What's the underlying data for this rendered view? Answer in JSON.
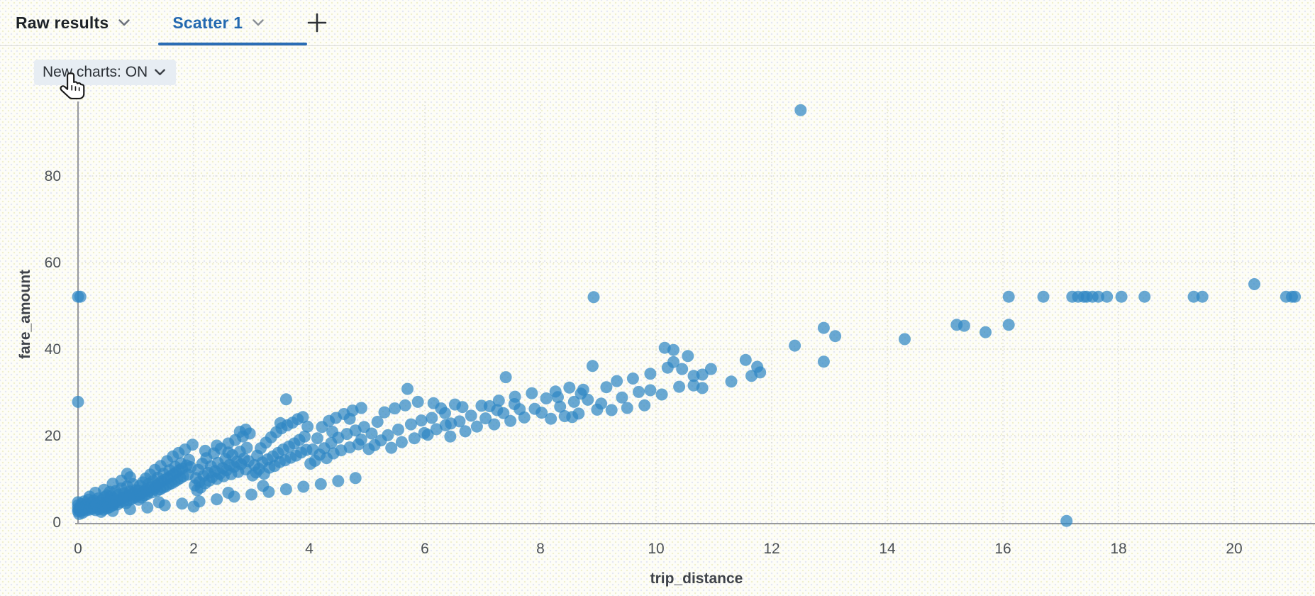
{
  "tab_bar": {
    "tabs": [
      {
        "label": "Raw results",
        "active": false
      },
      {
        "label": "Scatter 1",
        "active": true
      }
    ],
    "add_tab": "+"
  },
  "controls": {
    "new_charts_toggle": "New charts: ON"
  },
  "colors": {
    "accent_blue": "#2368b0",
    "tab_underline": "#2a6db5",
    "point_blue": "#2f86c4",
    "axis_gray": "#97999e",
    "grid_gray": "#d9d9cc",
    "tick_text": "#4b5055",
    "axis_title_text": "#3f434a",
    "pill_background": "#e7edf3",
    "page_background": "#fdfdf7"
  },
  "chart_data": {
    "type": "scatter",
    "xlabel": "trip_distance",
    "ylabel": "fare_amount",
    "x_ticks": [
      0,
      2,
      4,
      6,
      8,
      10,
      12,
      14,
      16,
      18,
      20
    ],
    "y_ticks": [
      0,
      20,
      40,
      60,
      80
    ],
    "xlim": [
      0,
      21.4
    ],
    "ylim": [
      0,
      97
    ],
    "grid": true,
    "legend": false,
    "point_radius_px": 8.5,
    "points": [
      [
        0,
        2.5
      ],
      [
        0,
        3.1
      ],
      [
        0,
        3.9
      ],
      [
        0,
        4.6
      ],
      [
        0.02,
        1.9
      ],
      [
        0.02,
        2.8
      ],
      [
        0.04,
        3.5
      ],
      [
        0.05,
        2.6
      ],
      [
        0.06,
        4.2
      ],
      [
        0.08,
        2.2
      ],
      [
        0.08,
        3.2
      ],
      [
        0.1,
        2.9
      ],
      [
        0.1,
        4.8
      ],
      [
        0.12,
        3.6
      ],
      [
        0.14,
        2.7
      ],
      [
        0.15,
        4.1
      ],
      [
        0.17,
        3.3
      ],
      [
        0.18,
        5.2
      ],
      [
        0.2,
        2.9
      ],
      [
        0.2,
        5.9
      ],
      [
        0.22,
        3.8
      ],
      [
        0.24,
        4.5
      ],
      [
        0.25,
        3.1
      ],
      [
        0.27,
        5
      ],
      [
        0.28,
        3.5
      ],
      [
        0.3,
        2.8
      ],
      [
        0.3,
        6.8
      ],
      [
        0.31,
        4.2
      ],
      [
        0.33,
        3.7
      ],
      [
        0.35,
        5.5
      ],
      [
        0.36,
        3
      ],
      [
        0.38,
        4.6
      ],
      [
        0.4,
        2.4
      ],
      [
        0.4,
        3.4
      ],
      [
        0.41,
        5.1
      ],
      [
        0.43,
        4
      ],
      [
        0.44,
        2.9
      ],
      [
        0.45,
        7.5
      ],
      [
        0.46,
        5.8
      ],
      [
        0.47,
        3.6
      ],
      [
        0.48,
        4.4
      ],
      [
        0.5,
        3.2
      ],
      [
        0.5,
        6.2
      ],
      [
        0.52,
        4.1
      ],
      [
        0.54,
        5.3
      ],
      [
        0.55,
        3.5
      ],
      [
        0.55,
        7
      ],
      [
        0.57,
        6.1
      ],
      [
        0.58,
        4.7
      ],
      [
        0.6,
        2.6
      ],
      [
        0.6,
        3.9
      ],
      [
        0.6,
        8.9
      ],
      [
        0.62,
        5.6
      ],
      [
        0.63,
        4.3
      ],
      [
        0.65,
        7.2
      ],
      [
        0.66,
        5
      ],
      [
        0.68,
        4.1
      ],
      [
        0.7,
        6.4
      ],
      [
        0.71,
        5.2
      ],
      [
        0.73,
        4.6
      ],
      [
        0.75,
        7.8
      ],
      [
        0.75,
        9.6
      ],
      [
        0.76,
        5.5
      ],
      [
        0.78,
        4.9
      ],
      [
        0.8,
        6.7
      ],
      [
        0.81,
        5.8
      ],
      [
        0.83,
        4.4
      ],
      [
        0.85,
        8.3
      ],
      [
        0.85,
        11.2
      ],
      [
        0.86,
        6
      ],
      [
        0.88,
        5.1
      ],
      [
        0.9,
        3
      ],
      [
        0.9,
        7.1
      ],
      [
        0.9,
        10.4
      ],
      [
        0.91,
        6.3
      ],
      [
        0.93,
        5.4
      ],
      [
        0.95,
        8.8
      ],
      [
        0.96,
        6.6
      ],
      [
        0.98,
        5.7
      ],
      [
        1,
        7.4
      ],
      [
        1.02,
        6.1
      ],
      [
        1.04,
        7.3
      ],
      [
        1.05,
        5.2
      ],
      [
        1.07,
        8.4
      ],
      [
        1.08,
        6.6
      ],
      [
        1.1,
        5.7
      ],
      [
        1.12,
        9.2
      ],
      [
        1.13,
        7
      ],
      [
        1.15,
        6.2
      ],
      [
        1.17,
        10.1
      ],
      [
        1.18,
        7.6
      ],
      [
        1.2,
        3.4
      ],
      [
        1.2,
        6.5
      ],
      [
        1.22,
        8.8
      ],
      [
        1.23,
        7.2
      ],
      [
        1.25,
        11
      ],
      [
        1.27,
        8.1
      ],
      [
        1.28,
        6.9
      ],
      [
        1.3,
        9.5
      ],
      [
        1.32,
        7.7
      ],
      [
        1.33,
        12.1
      ],
      [
        1.35,
        8.5
      ],
      [
        1.37,
        7.3
      ],
      [
        1.38,
        10.3
      ],
      [
        1.4,
        4.6
      ],
      [
        1.4,
        8.9
      ],
      [
        1.42,
        7.6
      ],
      [
        1.43,
        13
      ],
      [
        1.45,
        9.4
      ],
      [
        1.47,
        8
      ],
      [
        1.48,
        11.2
      ],
      [
        1.5,
        3.9
      ],
      [
        1.5,
        9.8
      ],
      [
        1.52,
        8.3
      ],
      [
        1.54,
        14.1
      ],
      [
        1.55,
        10.2
      ],
      [
        1.57,
        8.7
      ],
      [
        1.58,
        12
      ],
      [
        1.6,
        10.6
      ],
      [
        1.62,
        9
      ],
      [
        1.64,
        15.2
      ],
      [
        1.65,
        11.1
      ],
      [
        1.67,
        9.4
      ],
      [
        1.68,
        12.8
      ],
      [
        1.7,
        11.5
      ],
      [
        1.72,
        9.8
      ],
      [
        1.74,
        16
      ],
      [
        1.75,
        12
      ],
      [
        1.77,
        10.2
      ],
      [
        1.78,
        13.6
      ],
      [
        1.8,
        4.3
      ],
      [
        1.8,
        12.4
      ],
      [
        1.82,
        10.6
      ],
      [
        1.85,
        16.8
      ],
      [
        1.88,
        13.1
      ],
      [
        1.9,
        11
      ],
      [
        1.92,
        14.4
      ],
      [
        1.95,
        12.7
      ],
      [
        1.98,
        17.9
      ],
      [
        2,
        3.6
      ],
      [
        2.02,
        8.5
      ],
      [
        2.04,
        10.2
      ],
      [
        2.06,
        7.4
      ],
      [
        2.08,
        12.1
      ],
      [
        2.1,
        4.8
      ],
      [
        2.1,
        9.3
      ],
      [
        2.12,
        8
      ],
      [
        2.15,
        13.5
      ],
      [
        2.17,
        10.7
      ],
      [
        2.2,
        9
      ],
      [
        2.2,
        16.5
      ],
      [
        2.22,
        14.8
      ],
      [
        2.25,
        11.4
      ],
      [
        2.27,
        9.6
      ],
      [
        2.3,
        12.9
      ],
      [
        2.32,
        10.4
      ],
      [
        2.35,
        15.9
      ],
      [
        2.37,
        11.8
      ],
      [
        2.4,
        5.3
      ],
      [
        2.4,
        10
      ],
      [
        2.4,
        17.7
      ],
      [
        2.42,
        13.7
      ],
      [
        2.45,
        11.2
      ],
      [
        2.47,
        17
      ],
      [
        2.5,
        12.5
      ],
      [
        2.52,
        10.6
      ],
      [
        2.55,
        14.6
      ],
      [
        2.57,
        12
      ],
      [
        2.6,
        6.8
      ],
      [
        2.6,
        16.1
      ],
      [
        2.6,
        18.2
      ],
      [
        2.62,
        13.2
      ],
      [
        2.65,
        11.1
      ],
      [
        2.67,
        15.5
      ],
      [
        2.7,
        5.9
      ],
      [
        2.7,
        12.8
      ],
      [
        2.72,
        19
      ],
      [
        2.75,
        14
      ],
      [
        2.77,
        11.6
      ],
      [
        2.8,
        16.3
      ],
      [
        2.8,
        20.9
      ],
      [
        2.82,
        13.4
      ],
      [
        2.85,
        19.8
      ],
      [
        2.87,
        14.7
      ],
      [
        2.9,
        12.2
      ],
      [
        2.9,
        21.4
      ],
      [
        2.92,
        17.2
      ],
      [
        2.95,
        14.1
      ],
      [
        2.97,
        20.5
      ],
      [
        3,
        6.4
      ],
      [
        3.02,
        10.8
      ],
      [
        3.05,
        13.2
      ],
      [
        3.08,
        11.5
      ],
      [
        3.1,
        15.4
      ],
      [
        3.13,
        12.3
      ],
      [
        3.16,
        17.1
      ],
      [
        3.19,
        13.8
      ],
      [
        3.2,
        8.4
      ],
      [
        3.22,
        11.2
      ],
      [
        3.25,
        18.4
      ],
      [
        3.28,
        14.5
      ],
      [
        3.3,
        7
      ],
      [
        3.31,
        12.6
      ],
      [
        3.34,
        19.6
      ],
      [
        3.37,
        15.2
      ],
      [
        3.4,
        13
      ],
      [
        3.43,
        20.8
      ],
      [
        3.46,
        16
      ],
      [
        3.49,
        13.9
      ],
      [
        3.5,
        22.9
      ],
      [
        3.52,
        21.7
      ],
      [
        3.55,
        16.8
      ],
      [
        3.58,
        14.3
      ],
      [
        3.6,
        7.6
      ],
      [
        3.6,
        28.4
      ],
      [
        3.62,
        22.4
      ],
      [
        3.65,
        17.5
      ],
      [
        3.68,
        14.9
      ],
      [
        3.71,
        23
      ],
      [
        3.74,
        18.2
      ],
      [
        3.77,
        15.4
      ],
      [
        3.8,
        23.8
      ],
      [
        3.83,
        19
      ],
      [
        3.86,
        16.1
      ],
      [
        3.89,
        24.3
      ],
      [
        3.9,
        8.2
      ],
      [
        3.92,
        19.8
      ],
      [
        3.95,
        16.7
      ],
      [
        3.97,
        22.1
      ],
      [
        4.02,
        13.5
      ],
      [
        4.06,
        16.8
      ],
      [
        4.1,
        14.2
      ],
      [
        4.14,
        19.4
      ],
      [
        4.18,
        15.6
      ],
      [
        4.2,
        8.8
      ],
      [
        4.22,
        22
      ],
      [
        4.26,
        17.1
      ],
      [
        4.3,
        14.8
      ],
      [
        4.34,
        23.4
      ],
      [
        4.38,
        18.3
      ],
      [
        4.4,
        20.9
      ],
      [
        4.42,
        15.9
      ],
      [
        4.46,
        24.1
      ],
      [
        4.5,
        9.5
      ],
      [
        4.5,
        19.5
      ],
      [
        4.55,
        16.6
      ],
      [
        4.6,
        25
      ],
      [
        4.65,
        20.4
      ],
      [
        4.7,
        17.3
      ],
      [
        4.7,
        23.9
      ],
      [
        4.75,
        25.8
      ],
      [
        4.8,
        10.2
      ],
      [
        4.8,
        21.2
      ],
      [
        4.85,
        18
      ],
      [
        4.9,
        19.1
      ],
      [
        4.9,
        26.4
      ],
      [
        4.95,
        22
      ],
      [
        5.03,
        16.9
      ],
      [
        5.08,
        20.5
      ],
      [
        5.13,
        17.8
      ],
      [
        5.18,
        23.2
      ],
      [
        5.24,
        18.9
      ],
      [
        5.3,
        25.4
      ],
      [
        5.36,
        20.1
      ],
      [
        5.42,
        17.2
      ],
      [
        5.48,
        26.3
      ],
      [
        5.54,
        21.4
      ],
      [
        5.6,
        18.5
      ],
      [
        5.66,
        27
      ],
      [
        5.7,
        30.8
      ],
      [
        5.76,
        22.6
      ],
      [
        5.82,
        19.4
      ],
      [
        5.88,
        27.8
      ],
      [
        5.94,
        23.5
      ],
      [
        5.99,
        20.6
      ],
      [
        6.05,
        20.2
      ],
      [
        6.12,
        24.1
      ],
      [
        6.15,
        27.5
      ],
      [
        6.2,
        21.5
      ],
      [
        6.28,
        26.3
      ],
      [
        6.35,
        25.2
      ],
      [
        6.36,
        22.4
      ],
      [
        6.44,
        19.8
      ],
      [
        6.45,
        22.8
      ],
      [
        6.52,
        27.2
      ],
      [
        6.6,
        23.3
      ],
      [
        6.65,
        26.6
      ],
      [
        6.7,
        21
      ],
      [
        6.8,
        24.6
      ],
      [
        6.9,
        22.1
      ],
      [
        6.98,
        26.9
      ],
      [
        7.05,
        24
      ],
      [
        7.12,
        26.8
      ],
      [
        7.2,
        22.6
      ],
      [
        7.25,
        25.9
      ],
      [
        7.28,
        28.1
      ],
      [
        7.36,
        25.2
      ],
      [
        7.4,
        33.5
      ],
      [
        7.48,
        23.4
      ],
      [
        7.55,
        27.3
      ],
      [
        7.56,
        29
      ],
      [
        7.64,
        26.1
      ],
      [
        7.72,
        24.2
      ],
      [
        7.85,
        29.8
      ],
      [
        7.9,
        26.2
      ],
      [
        8.02,
        25.3
      ],
      [
        8.1,
        28.6
      ],
      [
        8.18,
        23.9
      ],
      [
        8.26,
        30.2
      ],
      [
        8.3,
        28.9
      ],
      [
        8.34,
        26.7
      ],
      [
        8.42,
        24.5
      ],
      [
        8.5,
        31.1
      ],
      [
        8.55,
        24.3
      ],
      [
        8.58,
        27.8
      ],
      [
        8.66,
        25.1
      ],
      [
        8.7,
        29.7
      ],
      [
        8.74,
        30.6
      ],
      [
        8.82,
        28.3
      ],
      [
        8.9,
        36.1
      ],
      [
        8.92,
        52
      ],
      [
        8.98,
        26
      ],
      [
        9.05,
        27.4
      ],
      [
        9.14,
        31.2
      ],
      [
        9.23,
        25.9
      ],
      [
        9.32,
        32.6
      ],
      [
        9.41,
        28.8
      ],
      [
        9.5,
        26.4
      ],
      [
        9.6,
        33.2
      ],
      [
        9.7,
        30.1
      ],
      [
        9.8,
        27
      ],
      [
        9.9,
        30.5
      ],
      [
        9.9,
        34.3
      ],
      [
        10.1,
        29.5
      ],
      [
        10.15,
        40.3
      ],
      [
        10.2,
        35.7
      ],
      [
        10.3,
        37
      ],
      [
        10.3,
        39.8
      ],
      [
        10.4,
        31.3
      ],
      [
        10.45,
        35.4
      ],
      [
        10.55,
        38.4
      ],
      [
        10.65,
        31.6
      ],
      [
        10.65,
        33.8
      ],
      [
        10.8,
        31
      ],
      [
        10.8,
        34.1
      ],
      [
        10.95,
        35.4
      ],
      [
        11.3,
        32.5
      ],
      [
        11.55,
        37.5
      ],
      [
        11.65,
        33.8
      ],
      [
        11.75,
        35.9
      ],
      [
        11.8,
        34.6
      ],
      [
        0,
        27.8
      ],
      [
        0,
        52.1
      ],
      [
        0.04,
        52.1
      ],
      [
        12.4,
        40.8
      ],
      [
        12.5,
        95.2
      ],
      [
        12.9,
        37.1
      ],
      [
        12.9,
        44.9
      ],
      [
        13.1,
        43
      ],
      [
        14.3,
        42.3
      ],
      [
        15.2,
        45.6
      ],
      [
        15.33,
        45.4
      ],
      [
        15.7,
        43.9
      ],
      [
        16.1,
        45.6
      ],
      [
        16.1,
        52.1
      ],
      [
        16.7,
        52.1
      ],
      [
        17.1,
        0.3
      ],
      [
        17.2,
        52.1
      ],
      [
        17.3,
        52.1
      ],
      [
        17.4,
        52.1
      ],
      [
        17.45,
        52.1
      ],
      [
        17.55,
        52.1
      ],
      [
        17.65,
        52.1
      ],
      [
        17.8,
        52.1
      ],
      [
        18.05,
        52.1
      ],
      [
        18.45,
        52.1
      ],
      [
        19.3,
        52.1
      ],
      [
        19.45,
        52.1
      ],
      [
        20.35,
        55
      ],
      [
        20.9,
        52.1
      ],
      [
        21,
        52.1
      ],
      [
        21.05,
        52.1
      ]
    ]
  }
}
